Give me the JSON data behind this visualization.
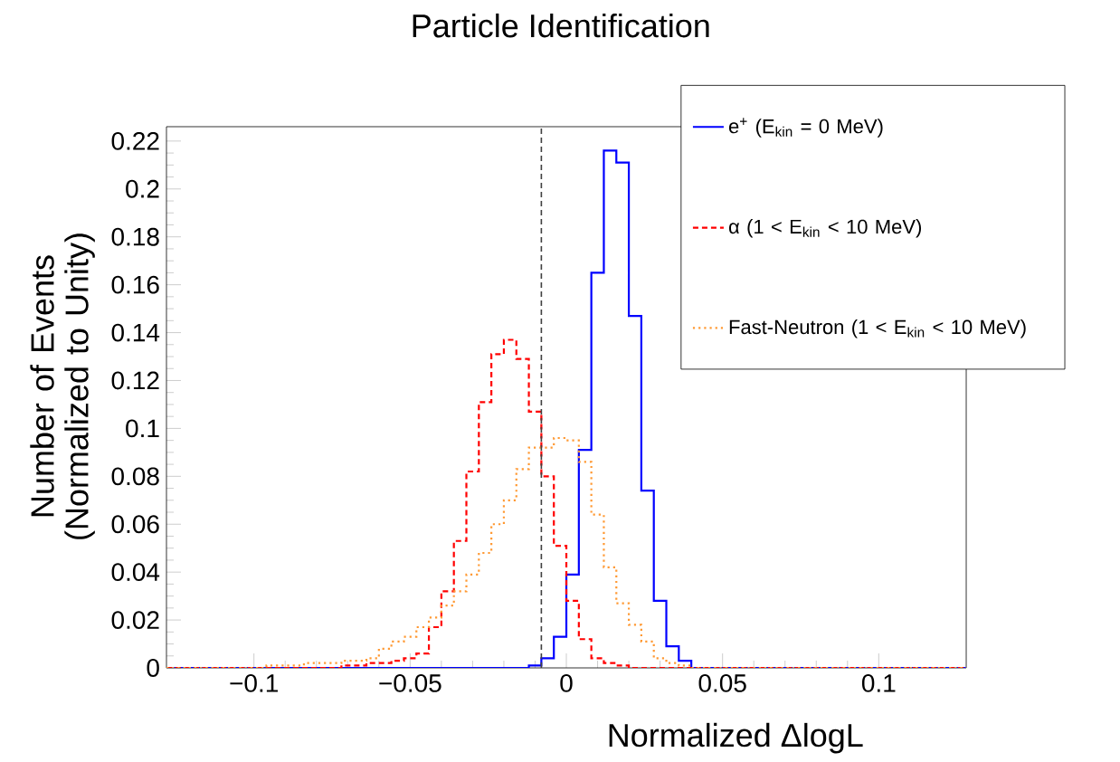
{
  "chart_data": {
    "type": "histogram",
    "title": "Particle Identification",
    "xlabel": "Normalized ΔlogL",
    "ylabel": "Number of Events (Normalized to Unity)",
    "bins": [
      -0.128,
      -0.124,
      -0.12,
      -0.116,
      -0.112,
      -0.108,
      -0.104,
      -0.1,
      -0.096,
      -0.092,
      -0.088,
      -0.084,
      -0.08,
      -0.076,
      -0.072,
      -0.068,
      -0.064,
      -0.06,
      -0.056,
      -0.052,
      -0.048,
      -0.044,
      -0.04,
      -0.036,
      -0.032,
      -0.028,
      -0.024,
      -0.02,
      -0.016,
      -0.012,
      -0.008,
      -0.004,
      0,
      0.004,
      0.008,
      0.012,
      0.016,
      0.02,
      0.024,
      0.028,
      0.032,
      0.036,
      0.04,
      0.044,
      0.048,
      0.052,
      0.056,
      0.06,
      0.064,
      0.068,
      0.072,
      0.076,
      0.08,
      0.084,
      0.088,
      0.092,
      0.096,
      0.1,
      0.104,
      0.108,
      0.112,
      0.116,
      0.12,
      0.124,
      0.128
    ],
    "series": [
      {
        "name": "e$^{+}$ (E$_{kin}$ = 0 MeV)",
        "color": "#0000ff",
        "line_style": "solid",
        "values": [
          0,
          0,
          0,
          0,
          0,
          0,
          0,
          0,
          0,
          0,
          0,
          0,
          0,
          0,
          0,
          0,
          0,
          0,
          0,
          0,
          0,
          0,
          0,
          0,
          0,
          0,
          0,
          0,
          0,
          0.001,
          0.004,
          0.013,
          0.039,
          0.091,
          0.165,
          0.216,
          0.211,
          0.147,
          0.074,
          0.028,
          0.009,
          0.003,
          0,
          0,
          0,
          0,
          0,
          0,
          0,
          0,
          0,
          0,
          0,
          0,
          0,
          0,
          0,
          0,
          0,
          0,
          0,
          0,
          0,
          0
        ]
      },
      {
        "name": "α (1 < E$_{kin}$ < 10 MeV)",
        "color": "#ff0000",
        "line_style": "dashed",
        "values": [
          0,
          0,
          0,
          0,
          0,
          0,
          0,
          0,
          0,
          0,
          0,
          0,
          0,
          0,
          0.001,
          0.001,
          0.002,
          0.002,
          0.003,
          0.004,
          0.006,
          0.017,
          0.032,
          0.053,
          0.082,
          0.111,
          0.131,
          0.137,
          0.129,
          0.107,
          0.08,
          0.051,
          0.028,
          0.012,
          0.004,
          0.002,
          0.001,
          0,
          0,
          0,
          0,
          0,
          0,
          0,
          0,
          0,
          0,
          0,
          0,
          0,
          0,
          0,
          0,
          0,
          0,
          0,
          0,
          0,
          0,
          0,
          0,
          0,
          0,
          0
        ]
      },
      {
        "name": "Fast-Neutron (1 < E$_{kin}$ < 10 MeV)",
        "color": "#ff9933",
        "line_style": "dotted",
        "values": [
          0,
          0,
          0,
          0,
          0,
          0,
          0,
          0,
          0.001,
          0.001,
          0.001,
          0.002,
          0.002,
          0.002,
          0.003,
          0.003,
          0.004,
          0.008,
          0.011,
          0.013,
          0.017,
          0.021,
          0.026,
          0.032,
          0.039,
          0.048,
          0.06,
          0.07,
          0.083,
          0.092,
          0.092,
          0.096,
          0.095,
          0.086,
          0.064,
          0.042,
          0.027,
          0.018,
          0.011,
          0.004,
          0.002,
          0.001,
          0,
          0,
          0,
          0,
          0,
          0,
          0,
          0,
          0,
          0,
          0,
          0,
          0,
          0,
          0,
          0,
          0,
          0,
          0,
          0,
          0,
          0
        ]
      }
    ],
    "xlim": [
      -0.128,
      0.128
    ],
    "ylim": [
      0,
      0.226
    ],
    "xticks": [
      {
        "value": -0.1,
        "label": "−0.1"
      },
      {
        "value": -0.05,
        "label": "−0.05"
      },
      0,
      0.05,
      0.1
    ],
    "yticks": [
      0,
      0.02,
      0.04,
      0.06,
      0.08,
      0.1,
      0.12,
      0.14,
      0.16,
      0.18,
      0.2,
      0.22
    ],
    "ref_lines": [
      {
        "axis": "x",
        "value": -0.008,
        "color": "#404040",
        "line_style": "dashed"
      }
    ],
    "legend": "top right"
  }
}
